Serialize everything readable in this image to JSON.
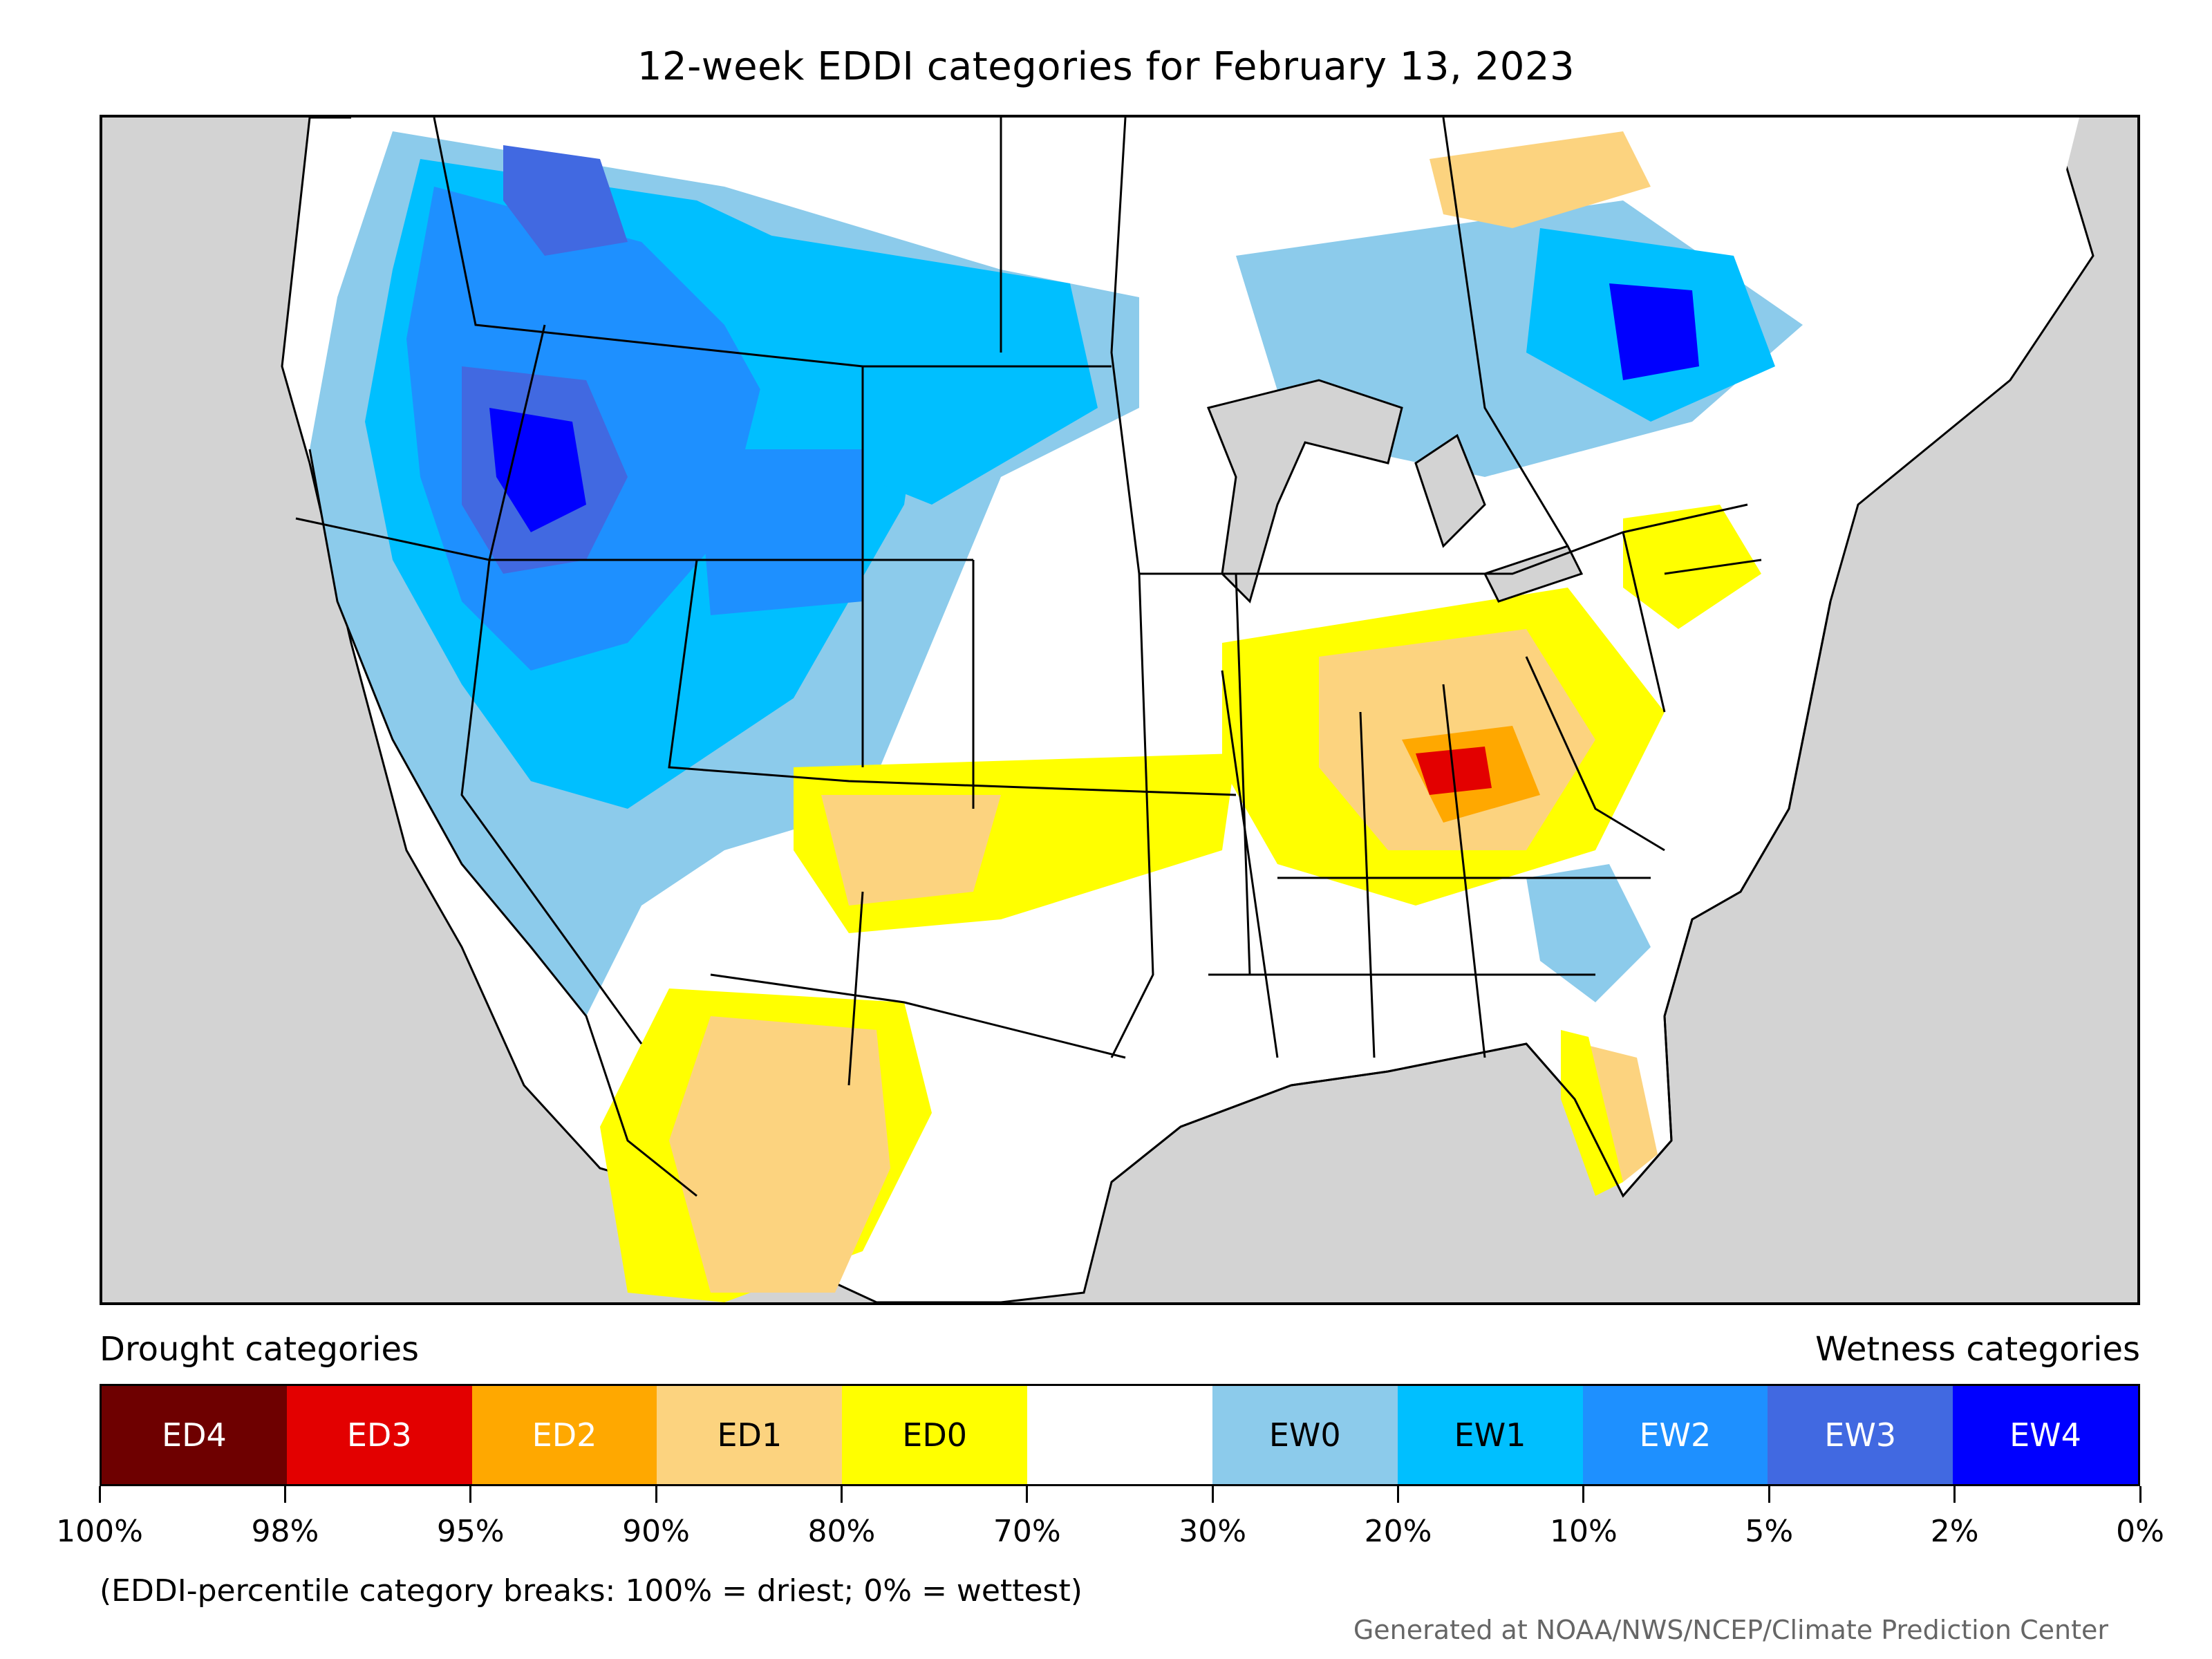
{
  "title": "12-week EDDI categories for February 13, 2023",
  "legend": {
    "drought_heading": "Drought categories",
    "wetness_heading": "Wetness categories",
    "categories": [
      {
        "label": "ED4",
        "color": "#6e0000",
        "text_color": "#ffffff"
      },
      {
        "label": "ED3",
        "color": "#e30000",
        "text_color": "#ffffff"
      },
      {
        "label": "ED2",
        "color": "#ffa800",
        "text_color": "#ffffff"
      },
      {
        "label": "ED1",
        "color": "#fcd37f",
        "text_color": "#000000"
      },
      {
        "label": "ED0",
        "color": "#ffff00",
        "text_color": "#000000"
      },
      {
        "label": "",
        "color": "#ffffff",
        "text_color": "#000000"
      },
      {
        "label": "EW0",
        "color": "#8ccbeb",
        "text_color": "#000000"
      },
      {
        "label": "EW1",
        "color": "#00bfff",
        "text_color": "#000000"
      },
      {
        "label": "EW2",
        "color": "#1e90ff",
        "text_color": "#ffffff"
      },
      {
        "label": "EW3",
        "color": "#4169e1",
        "text_color": "#ffffff"
      },
      {
        "label": "EW4",
        "color": "#0000ff",
        "text_color": "#ffffff"
      }
    ],
    "tick_labels": [
      "100%",
      "98%",
      "95%",
      "90%",
      "80%",
      "70%",
      "30%",
      "20%",
      "10%",
      "5%",
      "2%",
      "0%"
    ]
  },
  "note": "(EDDI-percentile category breaks: 100% = driest; 0% = wettest)",
  "credit": "Generated at NOAA/NWS/NCEP/Climate Prediction Center"
}
